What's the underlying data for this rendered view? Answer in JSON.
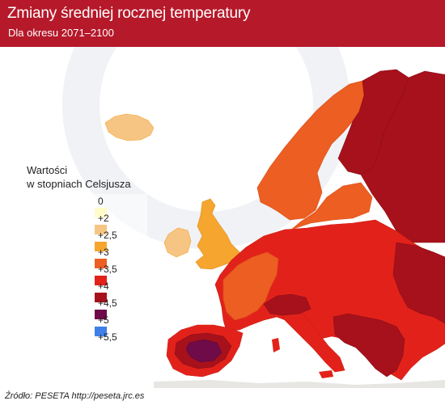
{
  "header": {
    "title": "Zmiany średniej rocznej temperatury",
    "subtitle": "Dla okresu 2071–2100"
  },
  "legend": {
    "title_line1": "Wartości",
    "title_line2": "w stopniach Celsjusza",
    "ticks": [
      "0",
      "+2",
      "+2,5",
      "+3",
      "+3,5",
      "+4",
      "+4,5",
      "+5",
      "+5,5"
    ],
    "colors": [
      "#fffccc",
      "#f6c583",
      "#f6a62e",
      "#ec5e22",
      "#e2221a",
      "#a6111c",
      "#6e0b48",
      "#3f7fe8"
    ]
  },
  "source": "Źródło: PESETA http://peseta.jrc.es",
  "colors": {
    "header": "#b5192a",
    "sea": "#ffffff",
    "outside": "#e8e6e3"
  }
}
